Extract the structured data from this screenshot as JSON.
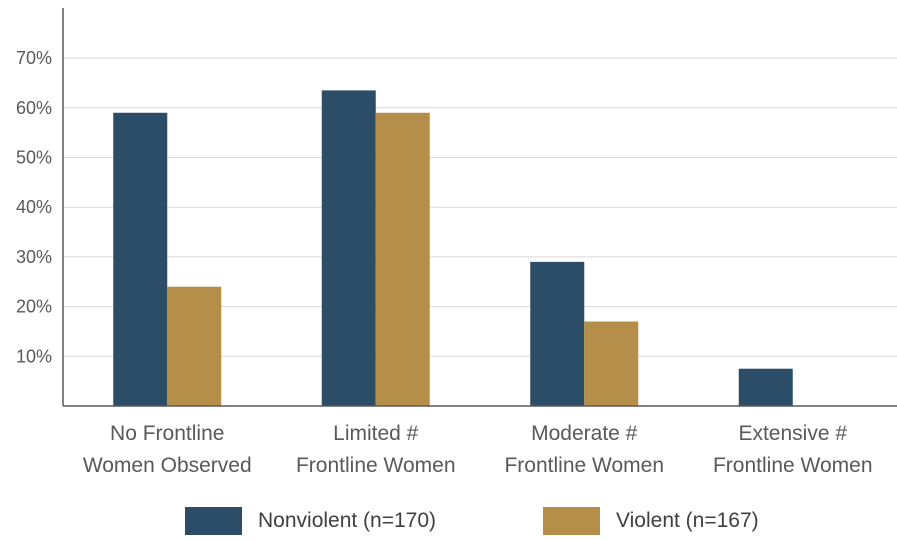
{
  "chart_data": {
    "type": "bar",
    "categories": [
      [
        "No Frontline",
        "Women Observed"
      ],
      [
        "Limited #",
        "Frontline Women"
      ],
      [
        "Moderate #",
        "Frontline Women"
      ],
      [
        "Extensive #",
        "Frontline Women"
      ]
    ],
    "series": [
      {
        "name": "Nonviolent (n=170)",
        "color": "#2c4d67",
        "values": [
          59,
          63.5,
          29,
          7.5
        ]
      },
      {
        "name": "Violent (n=167)",
        "color": "#b58e49",
        "values": [
          24,
          59,
          17,
          null
        ]
      }
    ],
    "ylim": [
      0,
      70
    ],
    "yticks": [
      10,
      20,
      30,
      40,
      50,
      60,
      70
    ],
    "ytick_labels": [
      "10%",
      "20%",
      "30%",
      "40%",
      "50%",
      "60%",
      "70%"
    ],
    "grid": true,
    "legend_position": "bottom",
    "title": "",
    "xlabel": "",
    "ylabel": ""
  }
}
